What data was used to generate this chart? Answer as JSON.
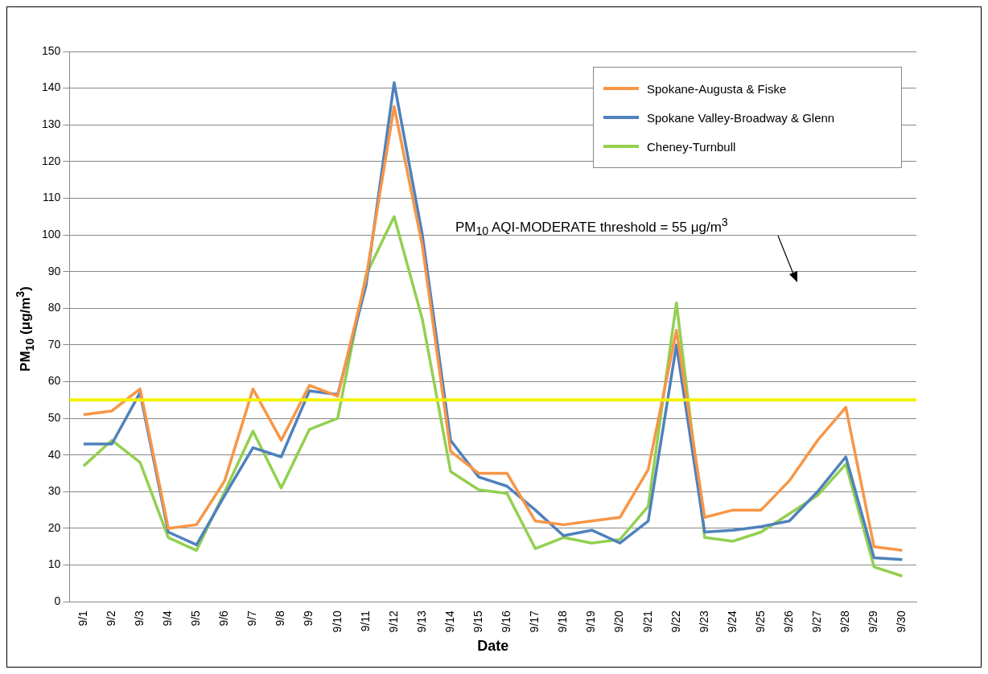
{
  "chart_data": {
    "type": "line",
    "xlabel": "Date",
    "ylabel": "PM$_{10}$ (μg/m$^{3}$)",
    "categories": [
      "9/1",
      "9/2",
      "9/3",
      "9/4",
      "9/5",
      "9/6",
      "9/7",
      "9/8",
      "9/9",
      "9/10",
      "9/11",
      "9/12",
      "9/13",
      "9/14",
      "9/15",
      "9/16",
      "9/17",
      "9/18",
      "9/19",
      "9/20",
      "9/21",
      "9/22",
      "9/23",
      "9/24",
      "9/25",
      "9/26",
      "9/27",
      "9/28",
      "9/29",
      "9/30"
    ],
    "series": [
      {
        "name": "Spokane-Augusta & Fiske",
        "color": "#f79646",
        "values": [
          51,
          52,
          58,
          20,
          21,
          33,
          58,
          44,
          59,
          56,
          88,
          135,
          97,
          41,
          35,
          35,
          22,
          21,
          22,
          23,
          36,
          74,
          23,
          25,
          25,
          33,
          44,
          53,
          15,
          14
        ]
      },
      {
        "name": "Spokane Valley-Broadway & Glenn",
        "color": "#4f81bd",
        "values": [
          43,
          43,
          57,
          19,
          15.5,
          29,
          42,
          39.5,
          57.5,
          56.5,
          86,
          141.5,
          100,
          44,
          34,
          31.5,
          25,
          18,
          19.5,
          16,
          22,
          70,
          19,
          19.5,
          20.5,
          22,
          30,
          39.5,
          12,
          11.5
        ]
      },
      {
        "name": "Cheney-Turnbull",
        "color": "#92d050",
        "values": [
          37,
          44,
          38,
          17.5,
          14,
          30,
          46.5,
          31,
          47,
          50,
          89,
          105,
          77,
          35.5,
          30.5,
          29.5,
          14.5,
          17.5,
          16,
          17,
          26,
          81.5,
          17.5,
          16.5,
          19,
          24,
          29,
          37.5,
          9.5,
          7
        ]
      }
    ],
    "ylim": [
      0,
      150
    ],
    "yticks": [
      0,
      10,
      20,
      30,
      40,
      50,
      60,
      70,
      80,
      90,
      100,
      110,
      120,
      130,
      140,
      150
    ],
    "grid": "y",
    "legend": "top right",
    "marker": "none",
    "line_style": "solid",
    "annotations": [
      "PM$_{10}$ AQI-MODERATE threshold = 55 μg/m$^{3}$"
    ],
    "ref_lines": [
      {
        "axis": "y",
        "value": 55,
        "color": "#f2f200"
      }
    ]
  }
}
